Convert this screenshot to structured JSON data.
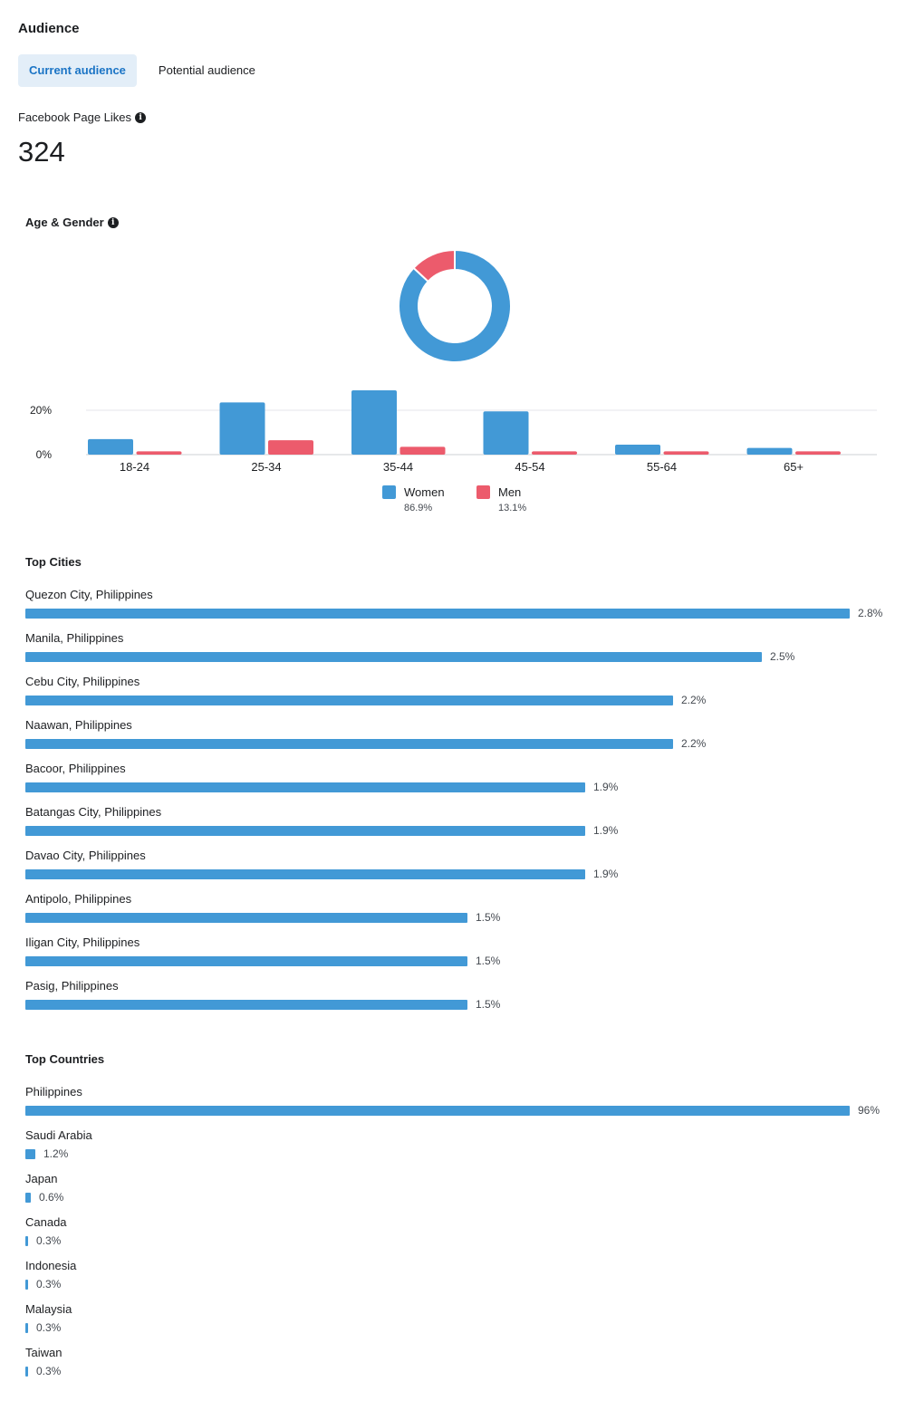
{
  "header": {
    "title": "Audience"
  },
  "tabs": [
    {
      "label": "Current audience",
      "active": true
    },
    {
      "label": "Potential audience",
      "active": false
    }
  ],
  "page_likes": {
    "label": "Facebook Page Likes",
    "value": "324"
  },
  "age_gender": {
    "title": "Age & Gender",
    "legend": [
      {
        "name": "Women",
        "percent": "86.9%",
        "color": "#4299d6"
      },
      {
        "name": "Men",
        "percent": "13.1%",
        "color": "#ec5b6c"
      }
    ]
  },
  "chart_data": [
    {
      "type": "pie",
      "title": "Age & Gender",
      "labels": [
        "Women",
        "Men"
      ],
      "values": [
        86.9,
        13.1
      ],
      "colors": [
        "#4299d6",
        "#ec5b6c"
      ]
    },
    {
      "type": "bar",
      "categories": [
        "18-24",
        "25-34",
        "35-44",
        "45-54",
        "55-64",
        "65+"
      ],
      "series": [
        {
          "name": "Women",
          "values": [
            7,
            23.5,
            29,
            19.5,
            4.5,
            3
          ],
          "color": "#4299d6"
        },
        {
          "name": "Men",
          "values": [
            1.5,
            6.5,
            3.5,
            1.5,
            1.5,
            1.5
          ],
          "color": "#ec5b6c"
        }
      ],
      "yticks": [
        "0%",
        "20%"
      ],
      "ylim": [
        0,
        30
      ],
      "grid": true
    }
  ],
  "top_cities": {
    "title": "Top Cities",
    "items": [
      {
        "name": "Quezon City, Philippines",
        "pct_label": "2.8%",
        "value": 2.8
      },
      {
        "name": "Manila, Philippines",
        "pct_label": "2.5%",
        "value": 2.5
      },
      {
        "name": "Cebu City, Philippines",
        "pct_label": "2.2%",
        "value": 2.2
      },
      {
        "name": "Naawan, Philippines",
        "pct_label": "2.2%",
        "value": 2.2
      },
      {
        "name": "Bacoor, Philippines",
        "pct_label": "1.9%",
        "value": 1.9
      },
      {
        "name": "Batangas City, Philippines",
        "pct_label": "1.9%",
        "value": 1.9
      },
      {
        "name": "Davao City, Philippines",
        "pct_label": "1.9%",
        "value": 1.9
      },
      {
        "name": "Antipolo, Philippines",
        "pct_label": "1.5%",
        "value": 1.5
      },
      {
        "name": "Iligan City, Philippines",
        "pct_label": "1.5%",
        "value": 1.5
      },
      {
        "name": "Pasig, Philippines",
        "pct_label": "1.5%",
        "value": 1.5
      }
    ]
  },
  "top_countries": {
    "title": "Top Countries",
    "items": [
      {
        "name": "Philippines",
        "pct_label": "96%",
        "value": 96
      },
      {
        "name": "Saudi Arabia",
        "pct_label": "1.2%",
        "value": 1.2
      },
      {
        "name": "Japan",
        "pct_label": "0.6%",
        "value": 0.6
      },
      {
        "name": "Canada",
        "pct_label": "0.3%",
        "value": 0.3
      },
      {
        "name": "Indonesia",
        "pct_label": "0.3%",
        "value": 0.3
      },
      {
        "name": "Malaysia",
        "pct_label": "0.3%",
        "value": 0.3
      },
      {
        "name": "Taiwan",
        "pct_label": "0.3%",
        "value": 0.3
      }
    ]
  }
}
